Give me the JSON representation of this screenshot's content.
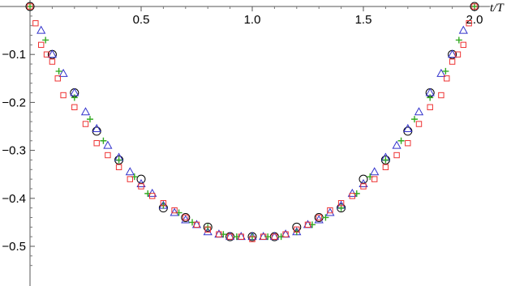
{
  "chart_data": {
    "type": "scatter",
    "title": "",
    "xlabel": "t/T",
    "ylabel": "",
    "xlim": [
      0,
      2.05
    ],
    "ylim": [
      -0.56,
      0.0
    ],
    "grid": false,
    "legend": "none",
    "x_ticks": [
      {
        "value": 0.5,
        "label": "0.5"
      },
      {
        "value": 1.0,
        "label": "1.0"
      },
      {
        "value": 1.5,
        "label": "1.5"
      },
      {
        "value": 2.0,
        "label": "2.0"
      }
    ],
    "y_ticks": [
      {
        "value": -0.1,
        "label": "−0.1"
      },
      {
        "value": -0.2,
        "label": "−0.2"
      },
      {
        "value": -0.3,
        "label": "−0.3"
      },
      {
        "value": -0.4,
        "label": "−0.4"
      },
      {
        "value": -0.5,
        "label": "−0.5"
      }
    ],
    "series": [
      {
        "marker": "circle",
        "color": "#000000",
        "x": [
          0.0,
          0.1,
          0.2,
          0.3,
          0.4,
          0.5,
          0.6,
          0.7,
          0.8,
          0.9,
          1.0,
          1.1,
          1.2,
          1.3,
          1.4,
          1.5,
          1.6,
          1.7,
          1.8,
          1.9,
          2.0
        ],
        "y": [
          0.0,
          -0.1,
          -0.18,
          -0.26,
          -0.32,
          -0.36,
          -0.42,
          -0.44,
          -0.46,
          -0.48,
          -0.48,
          -0.48,
          -0.46,
          -0.44,
          -0.42,
          -0.36,
          -0.32,
          -0.26,
          -0.18,
          -0.1,
          0.0
        ]
      },
      {
        "marker": "triangle",
        "color": "#3333cc",
        "x": [
          0.05,
          0.1,
          0.15,
          0.2,
          0.25,
          0.3,
          0.35,
          0.4,
          0.45,
          0.5,
          0.55,
          0.6,
          0.65,
          0.7,
          0.75,
          0.8,
          0.85,
          0.9,
          0.95,
          1.0,
          1.05,
          1.1,
          1.15,
          1.2,
          1.25,
          1.3,
          1.35,
          1.4,
          1.45,
          1.5,
          1.55,
          1.6,
          1.65,
          1.7,
          1.75,
          1.8,
          1.85,
          1.9,
          1.95
        ],
        "y": [
          -0.05,
          -0.1,
          -0.14,
          -0.18,
          -0.22,
          -0.255,
          -0.29,
          -0.315,
          -0.345,
          -0.37,
          -0.39,
          -0.415,
          -0.43,
          -0.445,
          -0.455,
          -0.47,
          -0.475,
          -0.48,
          -0.48,
          -0.48,
          -0.48,
          -0.48,
          -0.475,
          -0.47,
          -0.455,
          -0.445,
          -0.43,
          -0.415,
          -0.39,
          -0.37,
          -0.345,
          -0.315,
          -0.29,
          -0.255,
          -0.22,
          -0.18,
          -0.14,
          -0.1,
          -0.05
        ]
      },
      {
        "marker": "plus",
        "color": "#33aa22",
        "x": [
          0.0,
          0.07,
          0.13,
          0.2,
          0.27,
          0.33,
          0.4,
          0.47,
          0.53,
          0.6,
          0.67,
          0.73,
          0.8,
          0.87,
          0.93,
          1.0,
          1.07,
          1.13,
          1.2,
          1.27,
          1.33,
          1.4,
          1.47,
          1.53,
          1.6,
          1.67,
          1.73,
          1.8,
          1.87,
          1.93,
          2.0
        ],
        "y": [
          0.0,
          -0.07,
          -0.135,
          -0.19,
          -0.235,
          -0.28,
          -0.32,
          -0.355,
          -0.39,
          -0.415,
          -0.43,
          -0.45,
          -0.46,
          -0.475,
          -0.48,
          -0.48,
          -0.48,
          -0.48,
          -0.47,
          -0.455,
          -0.44,
          -0.42,
          -0.39,
          -0.355,
          -0.32,
          -0.28,
          -0.235,
          -0.19,
          -0.135,
          -0.07,
          0.0
        ]
      },
      {
        "marker": "square",
        "color": "#ee3333",
        "x": [
          0.0,
          0.025,
          0.05,
          0.075,
          0.1,
          0.125,
          0.15,
          0.2,
          0.25,
          0.3,
          0.35,
          0.4,
          0.45,
          0.5,
          0.55,
          0.6,
          0.65,
          0.7,
          0.75,
          0.8,
          0.85,
          0.9,
          0.95,
          1.0,
          1.05,
          1.1,
          1.15,
          1.2,
          1.25,
          1.3,
          1.35,
          1.4,
          1.45,
          1.5,
          1.55,
          1.6,
          1.65,
          1.7,
          1.75,
          1.8,
          1.85,
          1.875,
          1.9,
          1.925,
          1.95,
          1.975,
          2.0
        ],
        "y": [
          0.0,
          -0.035,
          -0.08,
          -0.1,
          -0.115,
          -0.15,
          -0.185,
          -0.21,
          -0.245,
          -0.285,
          -0.31,
          -0.335,
          -0.36,
          -0.375,
          -0.395,
          -0.41,
          -0.425,
          -0.44,
          -0.455,
          -0.465,
          -0.475,
          -0.48,
          -0.48,
          -0.485,
          -0.48,
          -0.48,
          -0.475,
          -0.465,
          -0.455,
          -0.44,
          -0.425,
          -0.41,
          -0.395,
          -0.375,
          -0.36,
          -0.335,
          -0.31,
          -0.285,
          -0.245,
          -0.21,
          -0.185,
          -0.15,
          -0.115,
          -0.1,
          -0.08,
          -0.035,
          0.0
        ]
      }
    ]
  }
}
